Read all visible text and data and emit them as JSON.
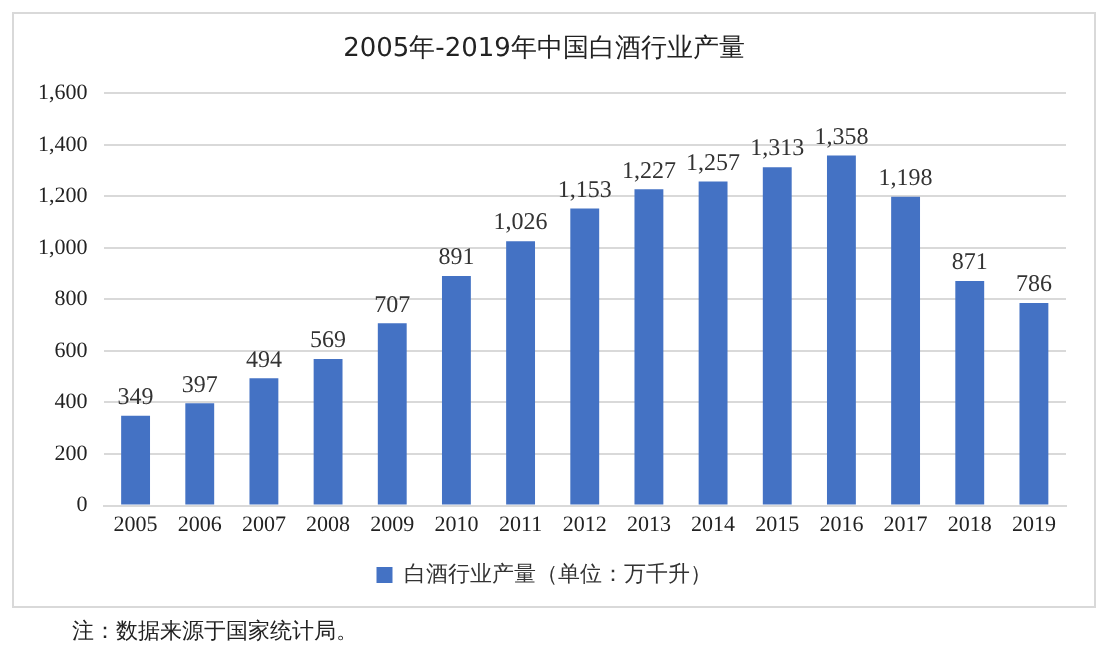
{
  "chart_data": {
    "type": "bar",
    "title": "2005年-2019年中国白酒行业产量",
    "categories": [
      "2005",
      "2006",
      "2007",
      "2008",
      "2009",
      "2010",
      "2011",
      "2012",
      "2013",
      "2014",
      "2015",
      "2016",
      "2017",
      "2018",
      "2019"
    ],
    "series": [
      {
        "name": "白酒行业产量（单位：万千升）",
        "color": "#4472c4",
        "values": [
          349,
          397,
          494,
          569,
          707,
          891,
          1026,
          1153,
          1227,
          1257,
          1313,
          1358,
          1198,
          871,
          786
        ],
        "value_labels": [
          "349",
          "397",
          "494",
          "569",
          "707",
          "891",
          "1,026",
          "1,153",
          "1,227",
          "1,257",
          "1,313",
          "1,358",
          "1,198",
          "871",
          "786"
        ]
      }
    ],
    "ylim": [
      0,
      1600
    ],
    "yticks": [
      0,
      200,
      400,
      600,
      800,
      {
        "value": 1000,
        "label": "1,000"
      },
      {
        "value": 1200,
        "label": "1,200"
      },
      {
        "value": 1400,
        "label": "1,400"
      },
      {
        "value": 1600,
        "label": "1,600"
      }
    ],
    "grid": "y",
    "legend": "bottom",
    "annotations": [
      "注：数据来源于国家统计局。"
    ]
  }
}
